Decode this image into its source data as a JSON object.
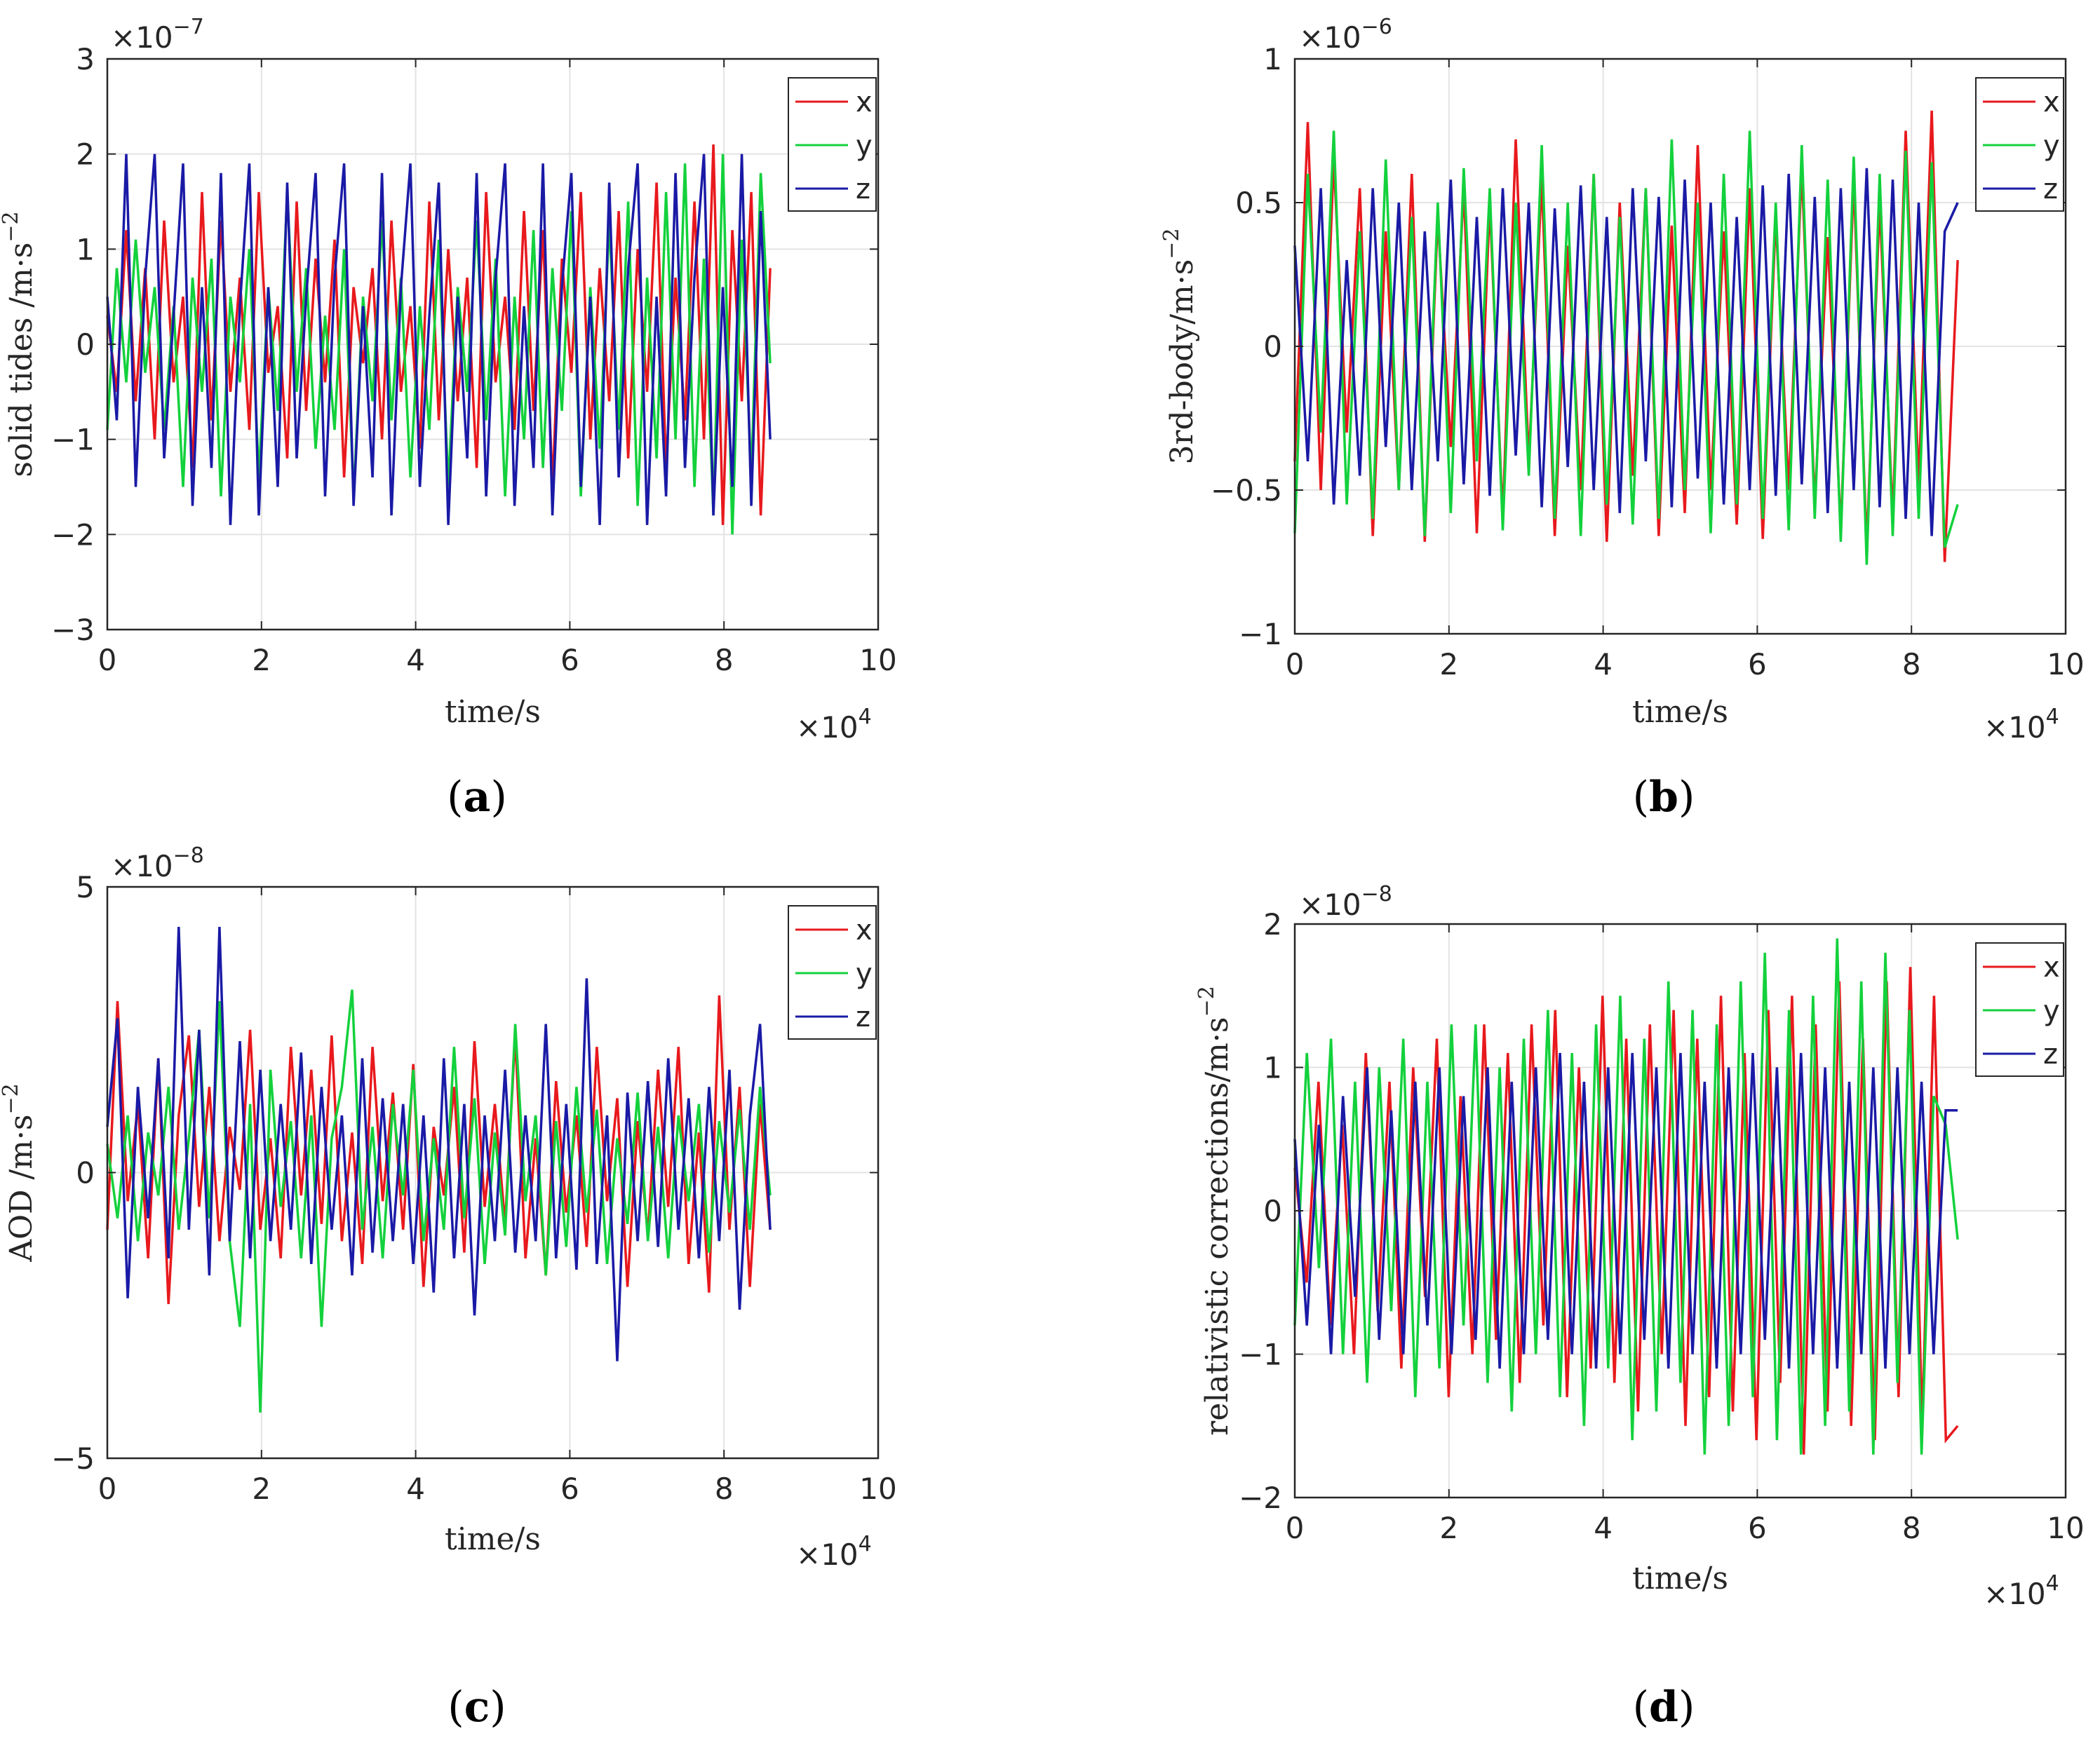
{
  "chart_data": [
    {
      "id": "a",
      "type": "line",
      "caption": {
        "open": "(",
        "letter": "a",
        "close": ")"
      },
      "ylabel": "solid tides /m·s",
      "ylabel_exp": "−2",
      "xlabel": "time/s",
      "x_multiplier": {
        "base": "×10",
        "exp": "4"
      },
      "y_multiplier": {
        "base": "×10",
        "exp": "−7"
      },
      "xlim": [
        0,
        10
      ],
      "ylim": [
        -3,
        3
      ],
      "xticks": [
        0,
        2,
        4,
        6,
        8,
        10
      ],
      "yticks": [
        -3,
        -2,
        -1,
        0,
        1,
        2,
        3
      ],
      "ytick_labels": [
        "−3",
        "−2",
        "−1",
        "0",
        "1",
        "2",
        "3"
      ],
      "x_end": 8.6,
      "series": [
        {
          "name": "x",
          "color": "#e8191d",
          "values": [
            0.3,
            -0.5,
            1.2,
            -0.6,
            0.8,
            -1.0,
            1.3,
            -0.4,
            0.5,
            -1.3,
            1.6,
            -0.8,
            1.3,
            -0.5,
            0.7,
            -0.9,
            1.6,
            -0.3,
            0.4,
            -1.2,
            1.5,
            -0.7,
            0.9,
            -0.4,
            1.1,
            -1.4,
            0.6,
            -0.2,
            0.8,
            -1.0,
            1.3,
            -0.5,
            0.4,
            -1.1,
            1.5,
            -0.8,
            1.0,
            -0.6,
            0.7,
            -1.3,
            1.6,
            -0.4,
            0.5,
            -0.9,
            1.4,
            -0.7,
            1.2,
            -1.5,
            0.9,
            -0.3,
            1.6,
            -1.0,
            0.8,
            -0.6,
            1.4,
            -1.2,
            1.0,
            -0.5,
            1.7,
            -1.3,
            0.7,
            -0.8,
            1.5,
            -1.0,
            2.1,
            -1.9,
            1.2,
            -0.6,
            1.6,
            -1.8,
            0.8
          ]
        },
        {
          "name": "y",
          "color": "#13d13c",
          "values": [
            -0.9,
            0.8,
            -0.4,
            1.1,
            -0.3,
            0.6,
            -0.9,
            0.4,
            -1.5,
            0.7,
            -0.5,
            0.9,
            -1.6,
            0.5,
            -0.4,
            1.0,
            -1.4,
            0.6,
            -0.7,
            1.6,
            -0.5,
            0.8,
            -1.1,
            0.3,
            -0.9,
            1.0,
            -1.6,
            0.5,
            -0.6,
            1.3,
            -0.8,
            0.7,
            -1.4,
            0.4,
            -0.9,
            1.1,
            -1.5,
            0.6,
            -0.5,
            1.3,
            -0.8,
            0.9,
            -1.6,
            0.5,
            -1.0,
            1.2,
            -1.3,
            0.8,
            -0.7,
            1.4,
            -1.6,
            0.6,
            -1.1,
            1.3,
            -0.9,
            1.5,
            -1.7,
            0.7,
            -1.2,
            1.6,
            -1.0,
            1.9,
            -1.5,
            0.9,
            -1.8,
            2.0,
            -2.0,
            1.1,
            -1.4,
            1.8,
            -0.2
          ]
        },
        {
          "name": "z",
          "color": "#1a1aa6",
          "values": [
            0.5,
            -0.8,
            2.0,
            -1.5,
            0.7,
            2.0,
            -1.2,
            0.3,
            1.9,
            -1.7,
            0.6,
            -1.3,
            1.8,
            -1.9,
            0.4,
            1.9,
            -1.8,
            0.6,
            -1.5,
            1.7,
            -1.2,
            0.5,
            1.8,
            -1.6,
            0.7,
            1.9,
            -1.7,
            0.4,
            -1.4,
            1.8,
            -1.8,
            0.6,
            1.9,
            -1.5,
            0.3,
            1.7,
            -1.9,
            0.5,
            -1.2,
            1.8,
            -1.6,
            0.7,
            1.9,
            -1.7,
            0.4,
            -1.3,
            1.9,
            -1.8,
            0.6,
            1.8,
            -1.5,
            0.5,
            -1.9,
            1.7,
            -1.4,
            0.8,
            1.9,
            -1.9,
            0.5,
            -1.6,
            1.8,
            -1.3,
            0.7,
            2.0,
            -1.8,
            0.6,
            -1.5,
            2.0,
            -1.7,
            1.4,
            -1.0
          ]
        }
      ]
    },
    {
      "id": "b",
      "type": "line",
      "caption": {
        "open": "(",
        "letter": "b",
        "close": ")"
      },
      "ylabel": "3rd-body/m·s",
      "ylabel_exp": "−2",
      "xlabel": "time/s",
      "x_multiplier": {
        "base": "×10",
        "exp": "4"
      },
      "y_multiplier": {
        "base": "×10",
        "exp": "−6"
      },
      "xlim": [
        0,
        10
      ],
      "ylim": [
        -1,
        1
      ],
      "xticks": [
        0,
        2,
        4,
        6,
        8,
        10
      ],
      "yticks": [
        -1,
        -0.5,
        0,
        0.5,
        1
      ],
      "ytick_labels": [
        "−1",
        "−0.5",
        "0",
        "0.5",
        "1"
      ],
      "x_end": 8.6,
      "series": [
        {
          "name": "x",
          "color": "#e8191d",
          "values": [
            -0.4,
            0.78,
            -0.5,
            0.65,
            -0.3,
            0.55,
            -0.66,
            0.4,
            -0.5,
            0.6,
            -0.68,
            0.45,
            -0.35,
            0.55,
            -0.65,
            0.5,
            -0.6,
            0.72,
            -0.4,
            0.58,
            -0.66,
            0.35,
            -0.5,
            0.6,
            -0.68,
            0.5,
            -0.45,
            0.55,
            -0.66,
            0.42,
            -0.58,
            0.7,
            -0.5,
            0.4,
            -0.62,
            0.55,
            -0.67,
            0.45,
            -0.5,
            0.62,
            -0.55,
            0.38,
            -0.64,
            0.58,
            -0.7,
            0.5,
            -0.6,
            0.75,
            -0.48,
            0.82,
            -0.75,
            0.3
          ]
        },
        {
          "name": "y",
          "color": "#13d13c",
          "values": [
            -0.65,
            0.6,
            -0.3,
            0.75,
            -0.55,
            0.4,
            -0.6,
            0.65,
            -0.5,
            0.45,
            -0.66,
            0.5,
            -0.58,
            0.62,
            -0.4,
            0.55,
            -0.64,
            0.5,
            -0.45,
            0.7,
            -0.6,
            0.5,
            -0.66,
            0.6,
            -0.55,
            0.45,
            -0.62,
            0.55,
            -0.6,
            0.72,
            -0.5,
            0.5,
            -0.65,
            0.6,
            -0.55,
            0.75,
            -0.6,
            0.5,
            -0.64,
            0.7,
            -0.6,
            0.58,
            -0.68,
            0.66,
            -0.76,
            0.6,
            -0.66,
            0.68,
            -0.6,
            0.64,
            -0.7,
            -0.55
          ]
        },
        {
          "name": "z",
          "color": "#1a1aa6",
          "values": [
            0.35,
            -0.4,
            0.55,
            -0.55,
            0.3,
            -0.45,
            0.55,
            -0.35,
            0.5,
            -0.5,
            0.4,
            -0.4,
            0.58,
            -0.48,
            0.45,
            -0.52,
            0.55,
            -0.38,
            0.5,
            -0.56,
            0.48,
            -0.42,
            0.56,
            -0.5,
            0.45,
            -0.58,
            0.55,
            -0.4,
            0.52,
            -0.56,
            0.58,
            -0.46,
            0.5,
            -0.55,
            0.45,
            -0.5,
            0.56,
            -0.52,
            0.6,
            -0.48,
            0.52,
            -0.58,
            0.55,
            -0.5,
            0.62,
            -0.56,
            0.58,
            -0.6,
            0.5,
            -0.66,
            0.4,
            0.5
          ]
        }
      ]
    },
    {
      "id": "c",
      "type": "line",
      "caption": {
        "open": "(",
        "letter": "c",
        "close": ")"
      },
      "ylabel": "AOD /m·s",
      "ylabel_exp": "−2",
      "xlabel": "time/s",
      "x_multiplier": {
        "base": "×10",
        "exp": "4"
      },
      "y_multiplier": {
        "base": "×10",
        "exp": "−8"
      },
      "xlim": [
        0,
        10
      ],
      "ylim": [
        -5,
        5
      ],
      "xticks": [
        0,
        2,
        4,
        6,
        8,
        10
      ],
      "yticks": [
        -5,
        0,
        5
      ],
      "ytick_labels": [
        "−5",
        "0",
        "5"
      ],
      "x_end": 8.6,
      "series": [
        {
          "name": "x",
          "color": "#e8191d",
          "values": [
            -1.0,
            3.0,
            -0.5,
            1.2,
            -1.5,
            2.0,
            -2.3,
            1.0,
            2.4,
            -0.6,
            1.5,
            -1.2,
            0.8,
            -0.3,
            2.5,
            -1.0,
            0.6,
            -1.5,
            2.2,
            -0.4,
            1.8,
            -0.9,
            2.4,
            -1.2,
            0.7,
            -1.6,
            2.2,
            -0.5,
            1.4,
            -1.0,
            1.9,
            -2.0,
            0.8,
            -0.4,
            1.5,
            -1.4,
            2.3,
            -0.6,
            1.2,
            -0.9,
            2.4,
            -1.5,
            0.6,
            -1.8,
            1.6,
            -0.7,
            1.0,
            -1.3,
            2.2,
            -0.5,
            1.3,
            -2.0,
            0.9,
            -1.1,
            1.8,
            -0.6,
            2.2,
            -1.6,
            0.7,
            -2.1,
            3.1,
            -1.0,
            1.5,
            -2.0,
            1.2,
            -1.0
          ]
        },
        {
          "name": "y",
          "color": "#13d13c",
          "values": [
            0.5,
            -0.8,
            1.0,
            -1.2,
            0.7,
            -0.4,
            1.5,
            -1.0,
            0.6,
            2.5,
            -0.8,
            3.0,
            -1.2,
            -2.7,
            1.2,
            -4.2,
            1.8,
            -0.6,
            0.9,
            -1.5,
            1.0,
            -2.7,
            0.6,
            1.5,
            3.2,
            -1.0,
            0.8,
            -1.5,
            1.2,
            -0.4,
            1.8,
            -1.2,
            0.6,
            -1.0,
            2.2,
            -0.8,
            1.3,
            -1.6,
            0.7,
            -1.1,
            2.6,
            -0.5,
            1.0,
            -1.8,
            0.9,
            -1.3,
            1.5,
            -0.7,
            1.1,
            -1.6,
            0.6,
            -0.9,
            1.4,
            -1.2,
            0.8,
            -1.5,
            1.0,
            -0.5,
            1.2,
            -1.4,
            0.9,
            -0.7,
            1.1,
            -1.0,
            1.5,
            -0.4
          ]
        },
        {
          "name": "z",
          "color": "#1a1aa6",
          "values": [
            0.8,
            2.7,
            -2.2,
            1.5,
            -0.8,
            2.0,
            -1.5,
            4.3,
            -1.0,
            2.5,
            -1.8,
            4.3,
            -1.2,
            2.3,
            -1.5,
            1.8,
            -1.2,
            1.2,
            -1.0,
            2.1,
            -1.6,
            1.5,
            -1.0,
            1.0,
            -1.8,
            2.0,
            -1.4,
            1.3,
            -1.2,
            1.2,
            -1.6,
            1.0,
            -2.1,
            2.0,
            -1.5,
            1.2,
            -2.5,
            1.0,
            -1.2,
            1.8,
            -1.4,
            1.0,
            -1.2,
            2.6,
            -1.5,
            1.2,
            -1.7,
            3.4,
            -1.6,
            1.0,
            -3.3,
            1.4,
            -1.2,
            1.6,
            -1.3,
            2.0,
            -1.0,
            1.3,
            -1.5,
            1.5,
            -1.2,
            1.8,
            -2.4,
            1.0,
            2.6,
            -1.0
          ]
        }
      ]
    },
    {
      "id": "d",
      "type": "line",
      "caption": {
        "open": "(",
        "letter": "d",
        "close": ")"
      },
      "ylabel": "relativistic corrections/m·s",
      "ylabel_exp": "−2",
      "xlabel": "time/s",
      "x_multiplier": {
        "base": "×10",
        "exp": "4"
      },
      "y_multiplier": {
        "base": "×10",
        "exp": "−8"
      },
      "xlim": [
        0,
        10
      ],
      "ylim": [
        -2,
        2
      ],
      "xticks": [
        0,
        2,
        4,
        6,
        8,
        10
      ],
      "yticks": [
        -2,
        -1,
        0,
        1,
        2
      ],
      "ytick_labels": [
        "−2",
        "−1",
        "0",
        "1",
        "2"
      ],
      "x_end": 8.6,
      "series": [
        {
          "name": "x",
          "color": "#e8191d",
          "values": [
            0.3,
            -0.5,
            0.9,
            -0.8,
            0.6,
            -1.0,
            1.1,
            -0.7,
            0.9,
            -1.1,
            1.0,
            -0.6,
            1.2,
            -1.3,
            0.8,
            -1.0,
            1.3,
            -0.9,
            1.1,
            -1.2,
            1.3,
            -0.8,
            1.4,
            -1.3,
            1.0,
            -1.1,
            1.5,
            -1.2,
            1.2,
            -1.4,
            1.3,
            -1.0,
            1.4,
            -1.5,
            1.2,
            -1.3,
            1.5,
            -1.4,
            1.1,
            -1.6,
            1.4,
            -1.2,
            1.5,
            -1.7,
            1.3,
            -1.4,
            1.6,
            -1.5,
            1.2,
            -1.6,
            1.6,
            -1.3,
            1.7,
            -1.5,
            1.5,
            -1.6,
            -1.5
          ]
        },
        {
          "name": "y",
          "color": "#13d13c",
          "values": [
            -0.8,
            1.1,
            -0.4,
            1.2,
            -1.0,
            0.9,
            -1.2,
            1.0,
            -0.7,
            1.2,
            -1.3,
            0.9,
            -1.1,
            1.3,
            -0.8,
            1.3,
            -1.2,
            1.0,
            -1.4,
            1.2,
            -1.0,
            1.4,
            -1.3,
            1.1,
            -1.5,
            1.3,
            -1.1,
            1.5,
            -1.6,
            1.2,
            -1.4,
            1.6,
            -1.2,
            1.4,
            -1.7,
            1.3,
            -1.5,
            1.6,
            -1.3,
            1.8,
            -1.6,
            1.4,
            -1.7,
            1.5,
            -1.5,
            1.9,
            -1.4,
            1.6,
            -1.7,
            1.8,
            -1.2,
            1.4,
            -1.7,
            0.8,
            0.6,
            -0.2
          ]
        },
        {
          "name": "z",
          "color": "#1a1aa6",
          "values": [
            0.5,
            -0.8,
            0.6,
            -1.0,
            0.8,
            -0.6,
            1.0,
            -0.9,
            0.7,
            -1.0,
            0.9,
            -0.8,
            1.0,
            -1.0,
            0.8,
            -0.9,
            1.0,
            -1.1,
            0.9,
            -1.0,
            1.0,
            -0.9,
            1.1,
            -1.0,
            0.9,
            -1.1,
            1.0,
            -1.0,
            1.1,
            -0.9,
            1.0,
            -1.1,
            1.1,
            -1.0,
            0.9,
            -1.1,
            1.0,
            -1.0,
            1.1,
            -0.9,
            1.0,
            -1.1,
            1.1,
            -1.0,
            1.0,
            -1.1,
            0.9,
            -1.0,
            1.0,
            -1.1,
            1.0,
            -1.0,
            0.9,
            -1.0,
            0.7,
            0.7
          ]
        }
      ]
    }
  ]
}
